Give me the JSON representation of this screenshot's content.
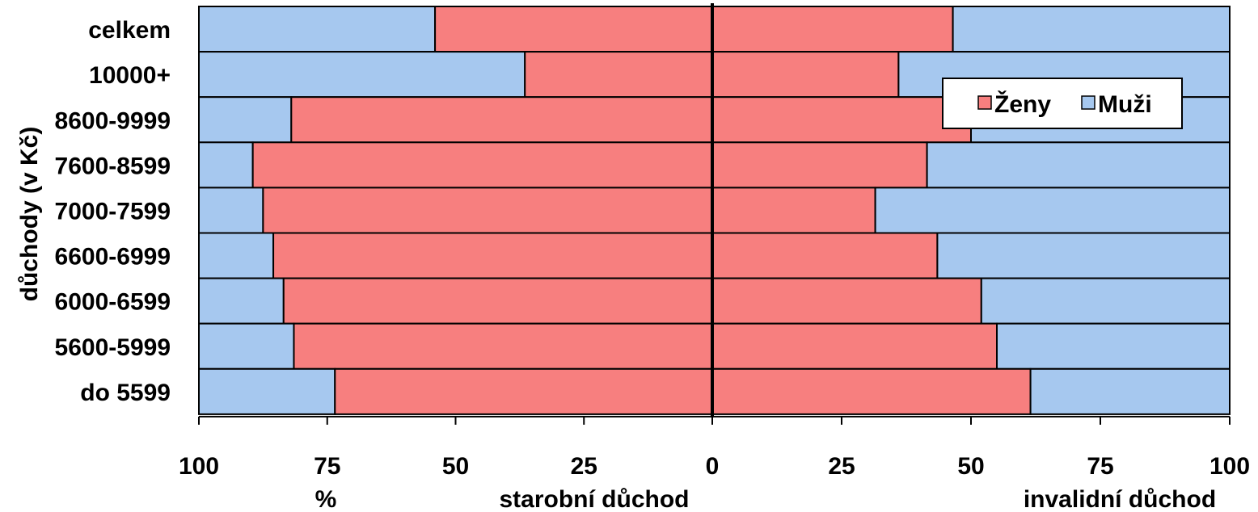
{
  "chart_data": {
    "type": "bar",
    "orientation": "horizontal",
    "stacked": "100-percent",
    "categories": [
      "celkem",
      "10000+",
      "8600-9999",
      "7600-8599",
      "7000-7599",
      "6600-6999",
      "6000-6599",
      "5600-5999",
      "do 5599"
    ],
    "panels": [
      {
        "name": "starobní důchod",
        "series": [
          {
            "name": "Ženy",
            "values": [
              54,
              36.5,
              82,
              89.5,
              87.5,
              85.5,
              83.5,
              81.5,
              73.5
            ]
          },
          {
            "name": "Muži",
            "values": [
              46,
              63.5,
              18,
              10.5,
              12.5,
              14.5,
              16.5,
              18.5,
              26.5
            ]
          }
        ]
      },
      {
        "name": "invalidní důchod",
        "series": [
          {
            "name": "Ženy",
            "values": [
              46.5,
              36,
              50,
              41.5,
              31.5,
              43.5,
              52,
              55,
              61.5
            ]
          },
          {
            "name": "Muži",
            "values": [
              53.5,
              64,
              50,
              58.5,
              68.5,
              56.5,
              48,
              45,
              38.5
            ]
          }
        ]
      }
    ],
    "x_ticks_left": [
      "100",
      "75",
      "50",
      "25",
      "0"
    ],
    "x_ticks_right": [
      "25",
      "50",
      "75",
      "100"
    ],
    "xlim": [
      0,
      100
    ],
    "xlabel_left": "starobní důchod",
    "xlabel_right": "invalidní důchod",
    "xunit": "%",
    "ylabel": "důchody (v Kč)",
    "legend": {
      "position": "top-right",
      "entries": [
        "Ženy",
        "Muži"
      ]
    },
    "colors": {
      "zeny": "#F77F7F",
      "muzi": "#A6C8EF",
      "border": "#000000"
    },
    "grid": false
  }
}
